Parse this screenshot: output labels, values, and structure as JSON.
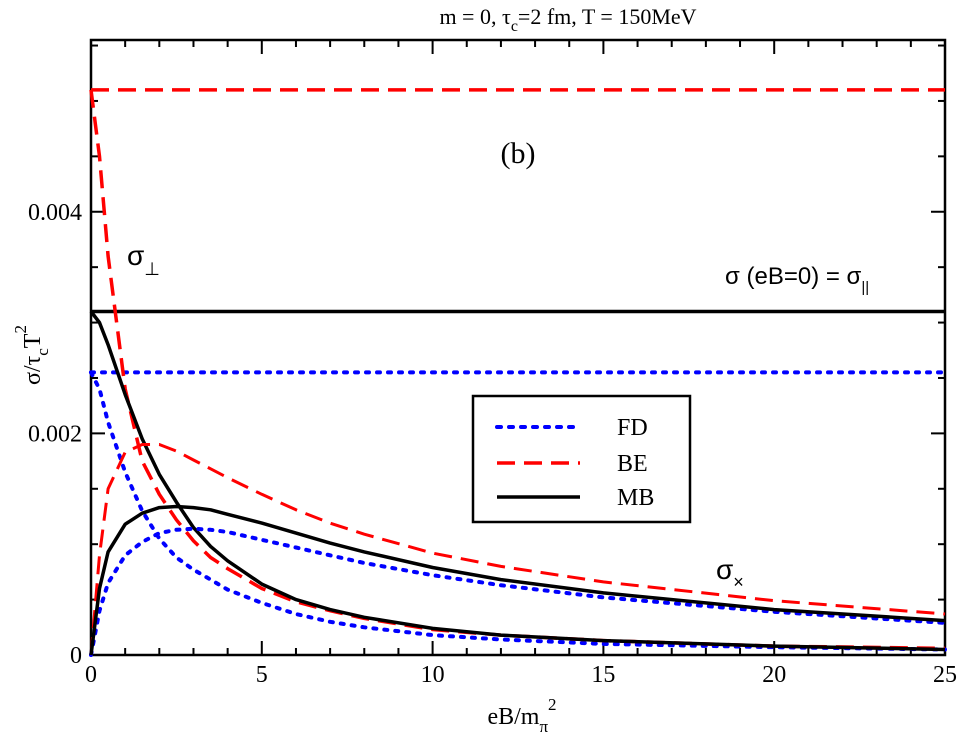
{
  "chart_data": {
    "type": "line",
    "title": "m = 0, τ",
    "title_sub": "c",
    "title_rest": "=2 fm, T = 150MeV",
    "panel_label": "(b)",
    "xlabel_main": "eB/m",
    "xlabel_sub": "π",
    "xlabel_sup": "2",
    "ylabel_main": "σ/τ",
    "ylabel_sub": "c",
    "ylabel_main2": "T",
    "ylabel_sup": "2",
    "xlim": [
      0,
      25
    ],
    "ylim": [
      0,
      0.00555
    ],
    "x_ticks": [
      0,
      5,
      10,
      15,
      20,
      25
    ],
    "x_tick_labels": [
      "0",
      "5",
      "10",
      "15",
      "20",
      "25"
    ],
    "y_ticks": [
      0,
      0.002,
      0.004
    ],
    "y_tick_labels": [
      "0",
      "0.002",
      "0.004"
    ],
    "grid": false,
    "legend_position": "center-right",
    "legend": [
      {
        "label": "FD",
        "color": "#0000ff",
        "style": "dotted"
      },
      {
        "label": "BE",
        "color": "#ff0000",
        "style": "dashed"
      },
      {
        "label": "MB",
        "color": "#000000",
        "style": "solid"
      }
    ],
    "annotations": {
      "sigma_perp": {
        "main": "σ",
        "sub": "⊥"
      },
      "sigma_cross": {
        "main": "σ",
        "sub": "×"
      },
      "sigma_par": {
        "main": "σ (eB=0) = σ",
        "sub": "||"
      }
    },
    "x": [
      0,
      0.25,
      0.5,
      1,
      1.5,
      2,
      2.5,
      3,
      3.5,
      4,
      5,
      6,
      7,
      8,
      10,
      12,
      15,
      20,
      25
    ],
    "series": [
      {
        "name": "σ (eB=0) = σ|| FD",
        "color": "#0000ff",
        "style": "dotted",
        "width": 4,
        "values": [
          0.00255,
          0.00255,
          0.00255,
          0.00255,
          0.00255,
          0.00255,
          0.00255,
          0.00255,
          0.00255,
          0.00255,
          0.00255,
          0.00255,
          0.00255,
          0.00255,
          0.00255,
          0.00255,
          0.00255,
          0.00255,
          0.00255
        ]
      },
      {
        "name": "σ (eB=0) = σ|| BE",
        "color": "#ff0000",
        "style": "dashed",
        "width": 3.5,
        "values": [
          0.0051,
          0.0051,
          0.0051,
          0.0051,
          0.0051,
          0.0051,
          0.0051,
          0.0051,
          0.0051,
          0.0051,
          0.0051,
          0.0051,
          0.0051,
          0.0051,
          0.0051,
          0.0051,
          0.0051,
          0.0051,
          0.0051
        ]
      },
      {
        "name": "σ (eB=0) = σ|| MB",
        "color": "#000000",
        "style": "solid",
        "width": 3.5,
        "values": [
          0.0031,
          0.0031,
          0.0031,
          0.0031,
          0.0031,
          0.0031,
          0.0031,
          0.0031,
          0.0031,
          0.0031,
          0.0031,
          0.0031,
          0.0031,
          0.0031,
          0.0031,
          0.0031,
          0.0031,
          0.0031,
          0.0031
        ]
      },
      {
        "name": "σ⊥ FD",
        "color": "#0000ff",
        "style": "dotted",
        "width": 4,
        "values": [
          0.00255,
          0.0024,
          0.0021,
          0.00165,
          0.0013,
          0.00105,
          0.00088,
          0.00077,
          0.00068,
          0.00059,
          0.00047,
          0.00037,
          0.0003,
          0.00025,
          0.00018,
          0.00014,
          0.0001,
          7e-05,
          5e-05
        ]
      },
      {
        "name": "σ⊥ BE",
        "color": "#ff0000",
        "style": "dashed",
        "width": 3.5,
        "values": [
          0.0051,
          0.0045,
          0.0036,
          0.0024,
          0.00175,
          0.00145,
          0.00122,
          0.00103,
          0.00088,
          0.00078,
          0.0006,
          0.00048,
          0.0004,
          0.00033,
          0.00023,
          0.00018,
          0.00013,
          8e-05,
          6e-05
        ]
      },
      {
        "name": "σ⊥ MB",
        "color": "#000000",
        "style": "solid",
        "width": 3.5,
        "values": [
          0.0031,
          0.003,
          0.0028,
          0.00235,
          0.00195,
          0.00163,
          0.00138,
          0.00115,
          0.00098,
          0.00085,
          0.00064,
          0.0005,
          0.00041,
          0.00034,
          0.00024,
          0.00018,
          0.00013,
          8e-05,
          5e-05
        ]
      },
      {
        "name": "σ× FD",
        "color": "#0000ff",
        "style": "dotted",
        "width": 4,
        "values": [
          0,
          0.0004,
          0.00065,
          0.0009,
          0.00102,
          0.0011,
          0.00113,
          0.00114,
          0.00113,
          0.00111,
          0.00104,
          0.00097,
          0.0009,
          0.00083,
          0.00072,
          0.00063,
          0.00052,
          0.00039,
          0.00029
        ]
      },
      {
        "name": "σ× BE",
        "color": "#ff0000",
        "style": "dashed",
        "width": 3,
        "values": [
          0,
          0.0009,
          0.0015,
          0.00183,
          0.0019,
          0.0019,
          0.00184,
          0.00176,
          0.00168,
          0.0016,
          0.00145,
          0.00131,
          0.00119,
          0.00109,
          0.00092,
          0.0008,
          0.00066,
          0.00049,
          0.00037
        ]
      },
      {
        "name": "σ× MB",
        "color": "#000000",
        "style": "solid",
        "width": 3.5,
        "values": [
          0,
          0.0006,
          0.00093,
          0.00118,
          0.00128,
          0.00133,
          0.00134,
          0.00133,
          0.00131,
          0.00127,
          0.00119,
          0.0011,
          0.00101,
          0.00093,
          0.00079,
          0.00068,
          0.00056,
          0.00041,
          0.00031
        ]
      }
    ]
  }
}
